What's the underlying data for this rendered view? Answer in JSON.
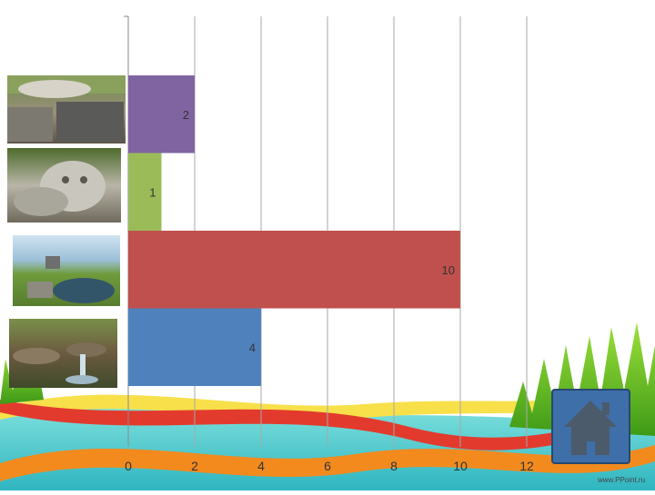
{
  "chart_data": {
    "type": "bar",
    "orientation": "horizontal",
    "categories": [
      "",
      "",
      "",
      ""
    ],
    "values": [
      4,
      10,
      1,
      2
    ],
    "series_colors": [
      "#4f81bd",
      "#c0504d",
      "#9bbb59",
      "#8064a2"
    ],
    "xlim": [
      0,
      12
    ],
    "xticks": [
      0,
      2,
      4,
      6,
      8,
      10,
      12
    ],
    "grid": true,
    "data_labels": [
      "4",
      "10",
      "1",
      "2"
    ]
  },
  "decor": {
    "category_images": [
      "spring-stream-photo",
      "pond-spring-photo",
      "stone-face-sculpture-photo",
      "stone-channel-spring-photo"
    ],
    "home_button_icon": "home-icon",
    "watermark": "www.PPoint.ru"
  }
}
